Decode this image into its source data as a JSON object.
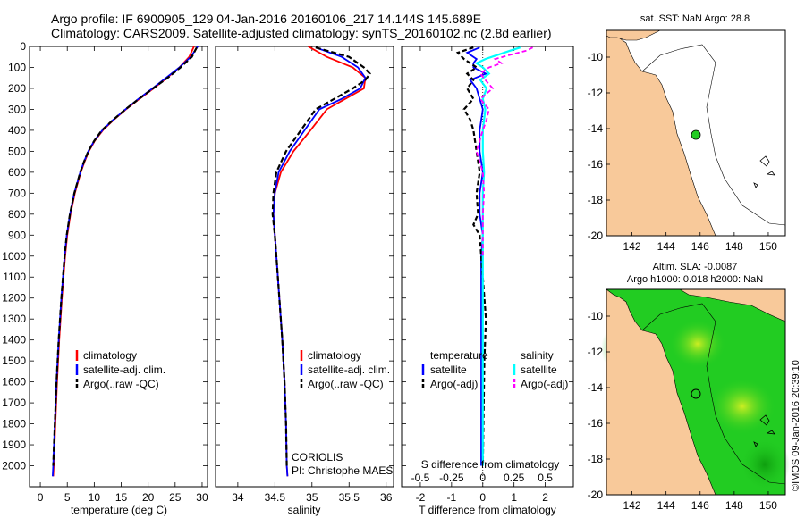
{
  "title": {
    "line1": "Argo profile: IF 6900905_129 04-Jan-2016 20160106_217 14.144S 145.689E",
    "line2": "Climatology: CARS2009. Satellite-adjusted climatology: synTS_20160102.nc (2.8d earlier)"
  },
  "colors": {
    "climatology": "#ff0000",
    "satellite": "#0000ff",
    "argo": "#000000",
    "sat_salinity": "#00ffff",
    "argo_salinity": "#ff00ff",
    "land": "#f8c99a",
    "green_map": "#22cc22",
    "marker": "#22cc22"
  },
  "chart_data": [
    {
      "type": "line",
      "id": "temperature",
      "xlabel": "temperature (deg C)",
      "x_ticks": [
        "0",
        "5",
        "10",
        "15",
        "20",
        "25",
        "30"
      ],
      "xlim": [
        -2,
        31
      ],
      "ylim": [
        2100,
        0
      ],
      "y_ticks": [
        "0",
        "100",
        "200",
        "300",
        "400",
        "500",
        "600",
        "700",
        "800",
        "900",
        "1000",
        "1100",
        "1200",
        "1300",
        "1400",
        "1500",
        "1600",
        "1700",
        "1800",
        "1900",
        "2000"
      ],
      "legend": [
        "climatology",
        "satellite-adj. clim.",
        "Argo(..raw -QC)"
      ],
      "series": [
        {
          "name": "climatology",
          "depth": [
            0,
            50,
            100,
            150,
            200,
            250,
            300,
            350,
            400,
            450,
            500,
            550,
            600,
            700,
            800,
            900,
            1000,
            1200,
            1400,
            1600,
            1800,
            2000,
            2050
          ],
          "values": [
            28.5,
            27.6,
            25.8,
            23.5,
            21.0,
            18.4,
            15.9,
            13.6,
            11.6,
            10.1,
            9.0,
            8.2,
            7.5,
            6.4,
            5.6,
            5.0,
            4.6,
            4.0,
            3.5,
            3.1,
            2.8,
            2.5,
            2.4
          ]
        },
        {
          "name": "satellite-adj. clim.",
          "depth": [
            0,
            50,
            100,
            150,
            200,
            250,
            300,
            350,
            400,
            450,
            500,
            550,
            600,
            700,
            800,
            900,
            1000,
            1200,
            1400,
            1600,
            1800,
            2000,
            2050
          ],
          "values": [
            29.2,
            27.9,
            25.8,
            23.3,
            20.8,
            18.2,
            15.8,
            13.5,
            11.5,
            10.0,
            8.9,
            8.1,
            7.4,
            6.3,
            5.5,
            4.9,
            4.5,
            3.9,
            3.4,
            3.0,
            2.7,
            2.4,
            2.3
          ]
        },
        {
          "name": "Argo(..raw -QC)",
          "depth": [
            5,
            50,
            100,
            150,
            200,
            250,
            300,
            350,
            400,
            450,
            500,
            550,
            600,
            700,
            800,
            900,
            1000,
            1200,
            1400,
            1600,
            1800,
            2000
          ],
          "values": [
            29.0,
            28.1,
            26.0,
            23.6,
            20.9,
            18.3,
            15.8,
            13.5,
            11.4,
            10.0,
            8.9,
            8.1,
            7.4,
            6.3,
            5.5,
            4.9,
            4.5,
            3.9,
            3.4,
            3.0,
            2.7,
            2.4
          ]
        }
      ]
    },
    {
      "type": "line",
      "id": "salinity",
      "xlabel": "salinity",
      "x_ticks": [
        "34",
        "34.5",
        "35",
        "35.5",
        "36"
      ],
      "xlim": [
        33.7,
        36.1
      ],
      "ylim": [
        2100,
        0
      ],
      "legend": [
        "climatology",
        "satellite-adj. clim.",
        "Argo(..raw -QC)"
      ],
      "annotation": [
        "CORIOLIS",
        "PI: Christophe MAES"
      ],
      "series": [
        {
          "name": "climatology",
          "depth": [
            0,
            50,
            100,
            150,
            200,
            250,
            300,
            400,
            500,
            600,
            700,
            800,
            900,
            1000,
            1200,
            1400,
            1600,
            1800,
            2000,
            2050
          ],
          "values": [
            34.95,
            35.2,
            35.55,
            35.72,
            35.7,
            35.45,
            35.2,
            34.98,
            34.75,
            34.58,
            34.5,
            34.48,
            34.5,
            34.52,
            34.56,
            34.6,
            34.63,
            34.65,
            34.66,
            34.67
          ]
        },
        {
          "name": "satellite-adj. clim.",
          "depth": [
            5,
            50,
            100,
            150,
            200,
            250,
            300,
            400,
            500,
            600,
            700,
            800,
            900,
            1000,
            1200,
            1400,
            1600,
            1800,
            2000,
            2050
          ],
          "values": [
            35.05,
            35.4,
            35.62,
            35.72,
            35.65,
            35.4,
            35.1,
            34.9,
            34.7,
            34.55,
            34.5,
            34.48,
            34.5,
            34.52,
            34.56,
            34.6,
            34.63,
            34.65,
            34.66,
            34.67
          ]
        },
        {
          "name": "Argo(..raw -QC)",
          "depth": [
            5,
            50,
            100,
            130,
            160,
            200,
            250,
            300,
            400,
            500,
            600,
            700,
            800,
            900,
            1000,
            1200,
            1400,
            1600,
            1800,
            2000
          ],
          "values": [
            35.05,
            35.5,
            35.7,
            35.78,
            35.72,
            35.55,
            35.3,
            35.05,
            34.85,
            34.65,
            34.52,
            34.48,
            34.47,
            34.5,
            34.52,
            34.56,
            34.6,
            34.63,
            34.65,
            34.66
          ]
        }
      ]
    },
    {
      "type": "line",
      "id": "differences",
      "xlabel": "T difference from climatology",
      "xlabel_top": "S difference from climatology",
      "x_ticks": [
        "-2",
        "-1",
        "0",
        "1",
        "2"
      ],
      "x_ticks_top": [
        "-0.5",
        "-0.25",
        "0",
        "0.25",
        "0.5"
      ],
      "xlim": [
        -2.6,
        2.9
      ],
      "ylim": [
        2100,
        0
      ],
      "legend": {
        "temperature": "temperature",
        "salinity": "salinity",
        "entries": [
          "satellite",
          "Argo(-adj)",
          "satellite",
          "Argo(-adj)"
        ]
      },
      "series": [
        {
          "name": "T satellite",
          "depth": [
            5,
            30,
            60,
            80,
            100,
            130,
            160,
            200,
            250,
            300,
            400,
            500,
            600,
            700,
            800,
            900,
            1000,
            1200,
            1500,
            2000
          ],
          "values": [
            -0.1,
            -0.5,
            -0.2,
            -0.3,
            -0.3,
            0.1,
            -0.4,
            -0.2,
            -0.1,
            0.0,
            -0.1,
            -0.1,
            0.0,
            -0.1,
            -0.1,
            0.0,
            -0.05,
            -0.05,
            -0.05,
            -0.05
          ]
        },
        {
          "name": "T Argo(-adj)",
          "depth": [
            5,
            30,
            60,
            80,
            100,
            130,
            160,
            200,
            250,
            300,
            350,
            400,
            500,
            600,
            700,
            800,
            850,
            900,
            1000,
            1300,
            1500,
            2000
          ],
          "values": [
            -0.3,
            -0.8,
            -0.6,
            -0.4,
            -0.2,
            -0.5,
            -0.3,
            -0.5,
            -0.3,
            -0.6,
            -0.4,
            -0.3,
            -0.2,
            -0.1,
            -0.2,
            -0.15,
            -0.3,
            -0.1,
            -0.05,
            0.1,
            0.05,
            0.0
          ]
        },
        {
          "name": "S satellite",
          "depth": [
            5,
            20,
            40,
            60,
            80,
            100,
            130,
            160,
            200,
            250,
            300,
            400,
            500,
            600,
            700,
            800,
            900,
            1000,
            1500,
            2000
          ],
          "values": [
            0.3,
            0.22,
            0.12,
            0.02,
            -0.05,
            0.0,
            0.05,
            -0.02,
            0.03,
            0.0,
            0.02,
            0.0,
            0.0,
            0.01,
            0.0,
            0.0,
            0.0,
            0.0,
            0.0,
            0.0
          ]
        },
        {
          "name": "S Argo(-adj)",
          "depth": [
            5,
            20,
            40,
            60,
            80,
            100,
            130,
            160,
            200,
            250,
            300,
            350,
            400,
            500,
            600,
            700,
            800,
            900,
            1000
          ],
          "values": [
            0.4,
            0.35,
            0.22,
            0.1,
            0.15,
            0.05,
            -0.02,
            0.02,
            0.08,
            -0.02,
            0.05,
            0.03,
            0.0,
            -0.05,
            0.0,
            0.01,
            0.0,
            0.0,
            0.0
          ]
        }
      ]
    },
    {
      "type": "map",
      "id": "sst_map",
      "title": "sat. SST: NaN Argo: 28.8",
      "x_ticks": [
        "142",
        "144",
        "146",
        "148",
        "150"
      ],
      "y_ticks": [
        "-10",
        "-12",
        "-14",
        "-16",
        "-18",
        "-20"
      ],
      "xlim": [
        140.5,
        151
      ],
      "ylim": [
        -20,
        -8.5
      ],
      "point": {
        "lon": 145.689,
        "lat": -14.144
      }
    },
    {
      "type": "map",
      "id": "sla_map",
      "title_line1": "Altim. SLA: -0.0087",
      "title_line2": "Argo h1000: 0.018 h2000: NaN",
      "x_ticks": [
        "142",
        "144",
        "146",
        "148",
        "150"
      ],
      "y_ticks": [
        "-10",
        "-12",
        "-14",
        "-16",
        "-18",
        "-20"
      ],
      "xlim": [
        140.5,
        151
      ],
      "ylim": [
        -20,
        -8.5
      ],
      "point": {
        "lon": 145.689,
        "lat": -14.144
      }
    }
  ],
  "footer": "©IMOS 09-Jan-2016 20:39:10"
}
